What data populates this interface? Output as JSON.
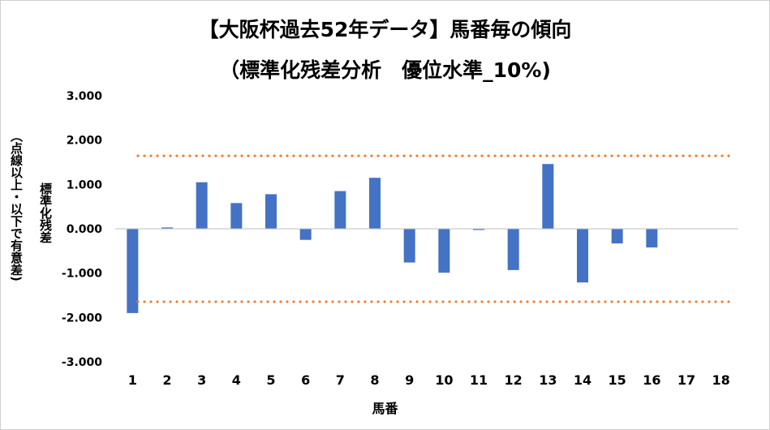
{
  "chart_data": {
    "type": "bar",
    "title_line1": "【大阪杯過去52年データ】馬番毎の傾向",
    "title_line2": "（標準化残差分析　優位水準_10%)",
    "xlabel": "馬番",
    "ylabel_main": "標準化残差",
    "ylabel_note": "（点線以上・以下で有意差)",
    "categories": [
      "1",
      "2",
      "3",
      "4",
      "5",
      "6",
      "7",
      "8",
      "9",
      "10",
      "11",
      "12",
      "13",
      "14",
      "15",
      "16",
      "17",
      "18"
    ],
    "series": [
      {
        "values": [
          -1.9,
          0.03,
          1.05,
          0.58,
          0.78,
          -0.25,
          0.85,
          1.15,
          -0.76,
          -0.99,
          -0.02,
          -0.93,
          1.46,
          -1.21,
          -0.33,
          -0.42,
          null,
          null
        ]
      }
    ],
    "threshold_upper": 1.645,
    "threshold_lower": -1.645,
    "ylim": [
      -3,
      3
    ],
    "yticks": [
      3,
      2,
      1,
      0,
      -1,
      -2,
      -3
    ],
    "ytick_labels": [
      "3.000",
      "2.000",
      "1.000",
      "0.000",
      "-1.000",
      "-2.000",
      "-3.000"
    ],
    "grid": false,
    "colors": {
      "bar": "#4472C4",
      "threshold": "#ED7D31",
      "axis": "#bfbfbf"
    }
  }
}
